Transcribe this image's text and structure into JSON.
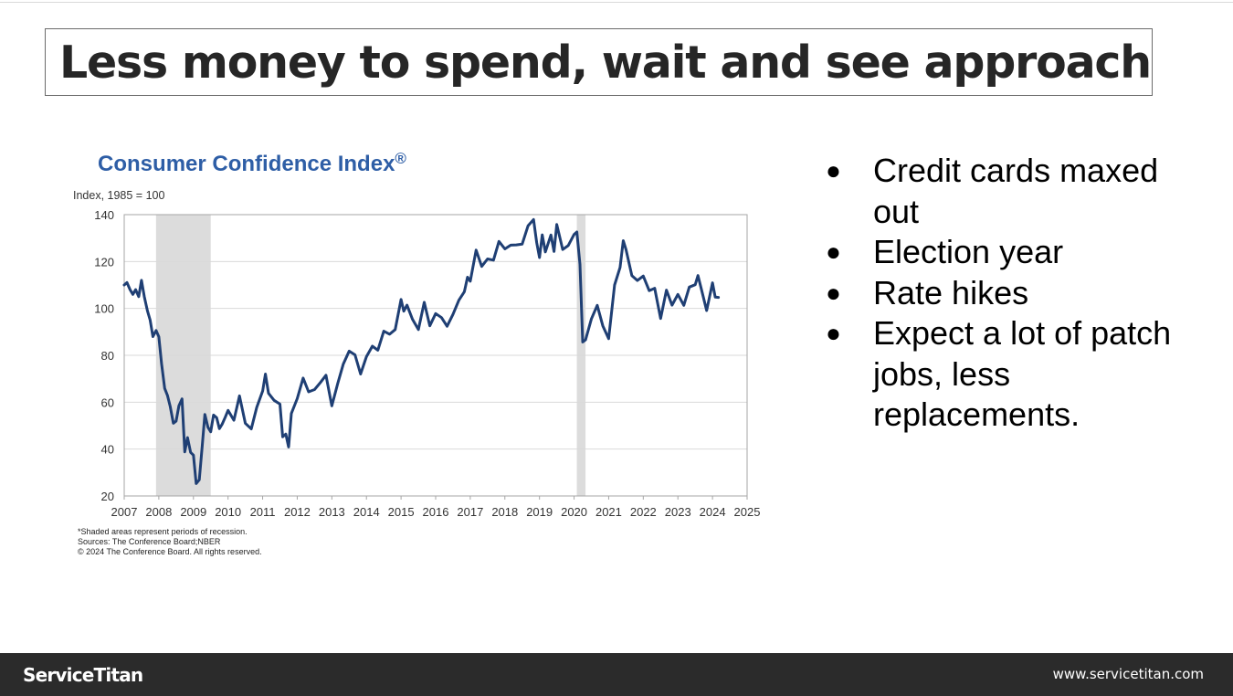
{
  "slide": {
    "title": "Less money to spend, wait and see approach"
  },
  "bullets": [
    "Credit cards maxed out",
    "Election year",
    "Rate hikes",
    "Expect a lot of patch jobs, less replacements."
  ],
  "bullet_symbol": "●",
  "footer": {
    "logo": "ServiceTitan",
    "url": "www.servicetitan.com"
  },
  "colors": {
    "line": "#1f3f74",
    "title_blue": "#2e5ea6",
    "recession": "#dcdcdc",
    "grid": "#d9d9d9",
    "footer_bg": "#2b2b2b"
  },
  "chart_data": {
    "type": "line",
    "title": "Consumer Confidence Index",
    "title_mark": "®",
    "ylabel": "Index, 1985 = 100",
    "xlabel": "",
    "xlim": [
      2007,
      2025
    ],
    "ylim": [
      20,
      140
    ],
    "xticks": [
      2007,
      2008,
      2009,
      2010,
      2011,
      2012,
      2013,
      2014,
      2015,
      2016,
      2017,
      2018,
      2019,
      2020,
      2021,
      2022,
      2023,
      2024,
      2025
    ],
    "yticks": [
      20,
      40,
      60,
      80,
      100,
      120,
      140
    ],
    "grid": true,
    "recessions": [
      [
        2007.92,
        2009.5
      ],
      [
        2020.08,
        2020.33
      ]
    ],
    "notes": [
      "*Shaded areas represent periods of recession.",
      "Sources: The Conference Board;NBER",
      "© 2024 The Conference Board. All rights reserved."
    ],
    "series": [
      {
        "name": "Consumer Confidence Index",
        "x": [
          2007.0,
          2007.08,
          2007.17,
          2007.25,
          2007.33,
          2007.42,
          2007.5,
          2007.58,
          2007.67,
          2007.75,
          2007.83,
          2007.92,
          2008.0,
          2008.08,
          2008.17,
          2008.25,
          2008.33,
          2008.42,
          2008.5,
          2008.58,
          2008.67,
          2008.75,
          2008.83,
          2008.92,
          2009.0,
          2009.08,
          2009.17,
          2009.25,
          2009.33,
          2009.42,
          2009.5,
          2009.58,
          2009.67,
          2009.75,
          2009.83,
          2009.92,
          2010.0,
          2010.17,
          2010.33,
          2010.5,
          2010.67,
          2010.83,
          2011.0,
          2011.08,
          2011.17,
          2011.33,
          2011.5,
          2011.58,
          2011.67,
          2011.75,
          2011.83,
          2012.0,
          2012.17,
          2012.33,
          2012.5,
          2012.67,
          2012.83,
          2013.0,
          2013.17,
          2013.33,
          2013.5,
          2013.67,
          2013.83,
          2014.0,
          2014.17,
          2014.33,
          2014.5,
          2014.67,
          2014.83,
          2015.0,
          2015.08,
          2015.17,
          2015.33,
          2015.5,
          2015.67,
          2015.83,
          2016.0,
          2016.17,
          2016.33,
          2016.5,
          2016.67,
          2016.83,
          2016.92,
          2017.0,
          2017.17,
          2017.33,
          2017.5,
          2017.67,
          2017.83,
          2018.0,
          2018.17,
          2018.33,
          2018.5,
          2018.67,
          2018.83,
          2018.92,
          2019.0,
          2019.08,
          2019.17,
          2019.33,
          2019.42,
          2019.5,
          2019.67,
          2019.83,
          2020.0,
          2020.08,
          2020.17,
          2020.25,
          2020.33,
          2020.5,
          2020.67,
          2020.83,
          2021.0,
          2021.17,
          2021.33,
          2021.42,
          2021.5,
          2021.67,
          2021.83,
          2022.0,
          2022.17,
          2022.33,
          2022.5,
          2022.67,
          2022.83,
          2023.0,
          2023.17,
          2023.33,
          2023.5,
          2023.58,
          2023.67,
          2023.83,
          2024.0,
          2024.08,
          2024.17
        ],
        "values": [
          110,
          111,
          108,
          106,
          108,
          105,
          112,
          105,
          99,
          95,
          88,
          90.6,
          87.9,
          76.4,
          65.9,
          62.8,
          58.1,
          51,
          51.9,
          58.5,
          61.4,
          38.8,
          44.9,
          38.6,
          37.4,
          25.3,
          26.9,
          40.8,
          54.8,
          49.3,
          47.4,
          54.5,
          53.4,
          48.7,
          50.6,
          53.6,
          56.5,
          52.3,
          62.7,
          51.0,
          48.6,
          57.8,
          64.8,
          72.0,
          63.8,
          60.8,
          59.2,
          45.2,
          46.4,
          40.9,
          55.2,
          61.5,
          70.3,
          64.4,
          65.4,
          68.4,
          71.5,
          58.4,
          68.0,
          76.2,
          81.8,
          80.2,
          72.0,
          79.4,
          83.9,
          82.2,
          90.3,
          89.0,
          91.0,
          103.8,
          98.8,
          101.4,
          95.4,
          91.0,
          102.6,
          92.6,
          97.8,
          96.1,
          92.4,
          97.4,
          103.5,
          107.1,
          113.3,
          111.6,
          124.9,
          117.9,
          121.1,
          120.6,
          128.6,
          125.4,
          127.0,
          127.1,
          127.4,
          135.3,
          137.9,
          128.1,
          121.7,
          131.4,
          124.1,
          131.3,
          124.3,
          135.8,
          125.1,
          126.8,
          131.6,
          132.6,
          118.8,
          85.7,
          86.6,
          95.5,
          101.3,
          92.6,
          87.1,
          110.0,
          117.5,
          128.9,
          125.1,
          114.0,
          111.9,
          113.8,
          107.6,
          108.6,
          95.7,
          107.8,
          101.4,
          106.0,
          101.3,
          109.1,
          110.1,
          114.0,
          108.7,
          99.1,
          110.9,
          104.8,
          104.7
        ]
      }
    ]
  }
}
